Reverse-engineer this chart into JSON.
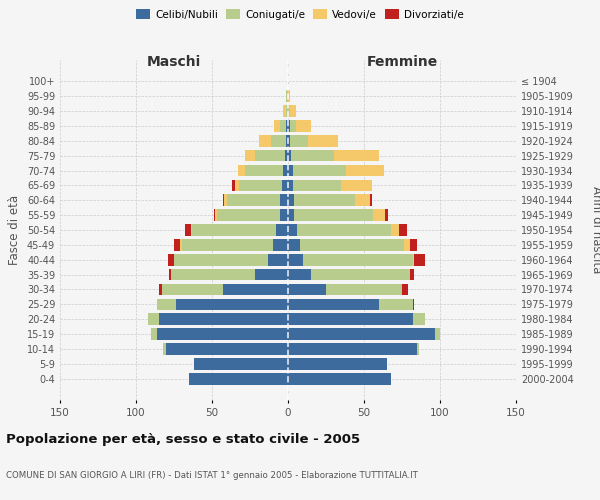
{
  "age_groups": [
    "0-4",
    "5-9",
    "10-14",
    "15-19",
    "20-24",
    "25-29",
    "30-34",
    "35-39",
    "40-44",
    "45-49",
    "50-54",
    "55-59",
    "60-64",
    "65-69",
    "70-74",
    "75-79",
    "80-84",
    "85-89",
    "90-94",
    "95-99",
    "100+"
  ],
  "birth_years": [
    "2000-2004",
    "1995-1999",
    "1990-1994",
    "1985-1989",
    "1980-1984",
    "1975-1979",
    "1970-1974",
    "1965-1969",
    "1960-1964",
    "1955-1959",
    "1950-1954",
    "1945-1949",
    "1940-1944",
    "1935-1939",
    "1930-1934",
    "1925-1929",
    "1920-1924",
    "1915-1919",
    "1910-1914",
    "1905-1909",
    "≤ 1904"
  ],
  "colors": {
    "celibi": "#3d6b9e",
    "coniugati": "#b8cc8e",
    "vedovi": "#f5c96a",
    "divorziati": "#c0211f"
  },
  "maschi": {
    "celibi": [
      65,
      62,
      80,
      86,
      85,
      74,
      43,
      22,
      13,
      10,
      8,
      5,
      5,
      4,
      3,
      2,
      1,
      1,
      0,
      0,
      0
    ],
    "coniugati": [
      0,
      0,
      2,
      4,
      7,
      12,
      40,
      55,
      62,
      60,
      55,
      42,
      35,
      28,
      25,
      20,
      10,
      4,
      1,
      1,
      0
    ],
    "vedovi": [
      0,
      0,
      0,
      0,
      0,
      0,
      0,
      0,
      0,
      1,
      1,
      1,
      2,
      3,
      5,
      6,
      8,
      4,
      2,
      0,
      0
    ],
    "divorziati": [
      0,
      0,
      0,
      0,
      0,
      0,
      2,
      1,
      4,
      4,
      4,
      1,
      1,
      2,
      0,
      0,
      0,
      0,
      0,
      0,
      0
    ]
  },
  "femmine": {
    "nubili": [
      68,
      65,
      85,
      97,
      82,
      60,
      25,
      15,
      10,
      8,
      6,
      4,
      4,
      3,
      3,
      2,
      1,
      1,
      0,
      0,
      0
    ],
    "coniugate": [
      0,
      0,
      1,
      3,
      8,
      22,
      50,
      65,
      72,
      68,
      62,
      52,
      40,
      32,
      35,
      28,
      12,
      4,
      1,
      0,
      0
    ],
    "vedove": [
      0,
      0,
      0,
      0,
      0,
      0,
      0,
      0,
      1,
      4,
      5,
      8,
      10,
      20,
      25,
      30,
      20,
      10,
      4,
      1,
      0
    ],
    "divorziate": [
      0,
      0,
      0,
      0,
      0,
      1,
      4,
      3,
      7,
      5,
      5,
      2,
      1,
      0,
      0,
      0,
      0,
      0,
      0,
      0,
      0
    ]
  },
  "xlim": 150,
  "title": "Popolazione per età, sesso e stato civile - 2005",
  "subtitle": "COMUNE DI SAN GIORGIO A LIRI (FR) - Dati ISTAT 1° gennaio 2005 - Elaborazione TUTTITALIA.IT",
  "ylabel_left": "Fasce di età",
  "ylabel_right": "Anni di nascita",
  "xlabel_left": "Maschi",
  "xlabel_right": "Femmine"
}
